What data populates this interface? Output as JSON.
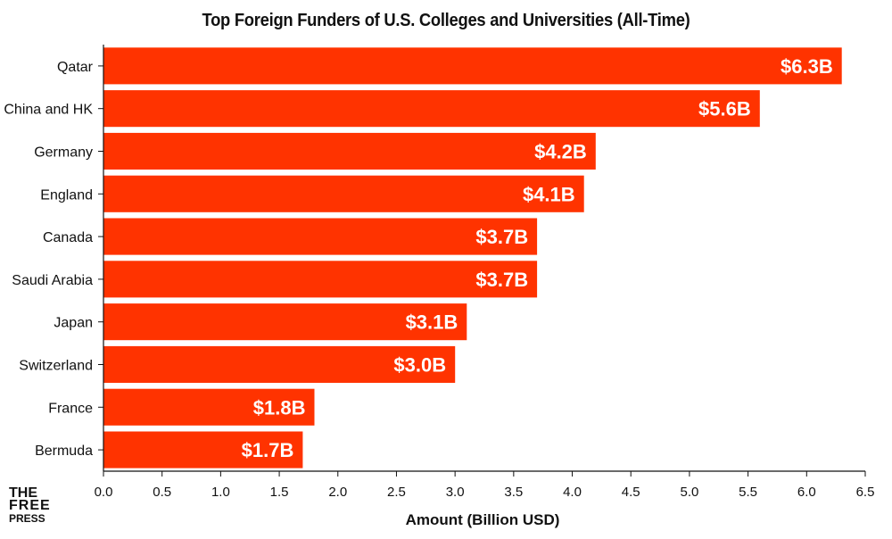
{
  "chart_data": {
    "type": "bar",
    "orientation": "horizontal",
    "title": "Top Foreign Funders of U.S. Colleges and Universities (All-Time)",
    "xlabel": "Amount (Billion USD)",
    "ylabel": "",
    "categories": [
      "Qatar",
      "China and HK",
      "Germany",
      "England",
      "Canada",
      "Saudi Arabia",
      "Japan",
      "Switzerland",
      "France",
      "Bermuda"
    ],
    "values": [
      6.3,
      5.6,
      4.2,
      4.1,
      3.7,
      3.7,
      3.1,
      3.0,
      1.8,
      1.7
    ],
    "data_labels": [
      "$6.3B",
      "$5.6B",
      "$4.2B",
      "$4.1B",
      "$3.7B",
      "$3.7B",
      "$3.1B",
      "$3.0B",
      "$1.8B",
      "$1.7B"
    ],
    "xlim": [
      0,
      6.5
    ],
    "xticks": [
      "0.0",
      "0.5",
      "1.0",
      "1.5",
      "2.0",
      "2.5",
      "3.0",
      "3.5",
      "4.0",
      "4.5",
      "5.0",
      "5.5",
      "6.0",
      "6.5"
    ],
    "bar_color": "#FF3300",
    "label_color": "#FFFFFF",
    "grid": false,
    "legend": "none"
  },
  "branding": {
    "logo_lines": [
      "THE",
      "FREE",
      "PRESS"
    ]
  }
}
